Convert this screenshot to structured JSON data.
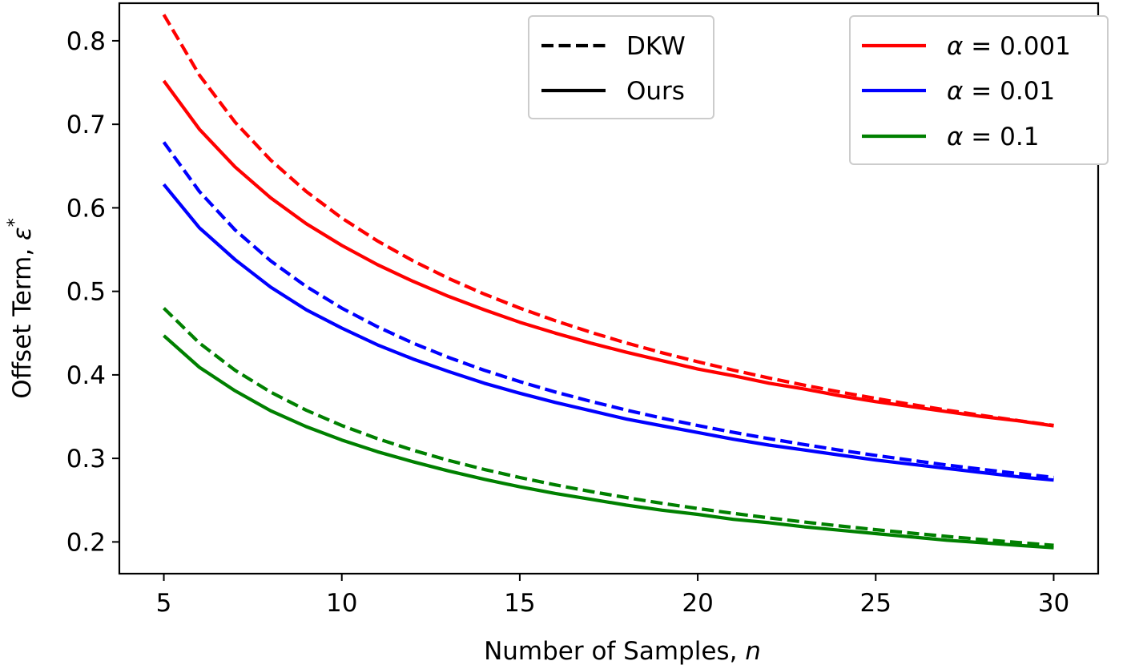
{
  "chart_data": {
    "type": "line",
    "title": "",
    "xlabel": "Number of Samples, ",
    "xlabel_var": "n",
    "ylabel": "Offset Term, ",
    "ylabel_var": "ε",
    "ylabel_sup": "*",
    "xlim": [
      3.75,
      31.25
    ],
    "ylim": [
      0.162,
      0.845
    ],
    "x_ticks": [
      5,
      10,
      15,
      20,
      25,
      30
    ],
    "x_tick_labels": [
      "5",
      "10",
      "15",
      "20",
      "25",
      "30"
    ],
    "y_ticks": [
      0.2,
      0.3,
      0.4,
      0.5,
      0.6,
      0.7,
      0.8
    ],
    "y_tick_labels": [
      "0.2",
      "0.3",
      "0.4",
      "0.5",
      "0.6",
      "0.7",
      "0.8"
    ],
    "grid": false,
    "x": [
      5,
      6,
      7,
      8,
      9,
      10,
      11,
      12,
      13,
      14,
      15,
      16,
      17,
      18,
      19,
      20,
      21,
      22,
      23,
      24,
      25,
      26,
      27,
      28,
      29,
      30
    ],
    "series": [
      {
        "name": "DKW, α = 0.001",
        "method": "DKW",
        "alpha": "0.001",
        "color": "#ff0000",
        "style": "dashed",
        "values": [
          0.8313,
          0.7589,
          0.7026,
          0.6572,
          0.6196,
          0.5878,
          0.5604,
          0.5366,
          0.5155,
          0.4968,
          0.48,
          0.4648,
          0.4509,
          0.4382,
          0.4265,
          0.4157,
          0.4057,
          0.3963,
          0.3876,
          0.3795,
          0.3718,
          0.3646,
          0.3578,
          0.3514,
          0.3453,
          0.3395
        ]
      },
      {
        "name": "Ours, α = 0.001",
        "method": "Ours",
        "alpha": "0.001",
        "color": "#ff0000",
        "style": "solid",
        "values": [
          0.752,
          0.694,
          0.649,
          0.612,
          0.581,
          0.555,
          0.532,
          0.512,
          0.494,
          0.478,
          0.463,
          0.45,
          0.438,
          0.427,
          0.417,
          0.407,
          0.399,
          0.39,
          0.383,
          0.375,
          0.368,
          0.362,
          0.356,
          0.35,
          0.345,
          0.339
        ]
      },
      {
        "name": "DKW, α = 0.01",
        "method": "DKW",
        "alpha": "0.01",
        "color": "#0000ff",
        "style": "dashed",
        "values": [
          0.6786,
          0.6195,
          0.5736,
          0.5365,
          0.5059,
          0.4799,
          0.4576,
          0.4381,
          0.4209,
          0.4056,
          0.3919,
          0.3795,
          0.3682,
          0.3578,
          0.3482,
          0.3394,
          0.3312,
          0.3236,
          0.3165,
          0.3098,
          0.3036,
          0.2977,
          0.2921,
          0.2869,
          0.2819,
          0.2772
        ]
      },
      {
        "name": "Ours, α = 0.01",
        "method": "Ours",
        "alpha": "0.01",
        "color": "#0000ff",
        "style": "solid",
        "values": [
          0.628,
          0.576,
          0.538,
          0.505,
          0.478,
          0.456,
          0.436,
          0.419,
          0.404,
          0.39,
          0.378,
          0.367,
          0.357,
          0.347,
          0.339,
          0.331,
          0.323,
          0.316,
          0.31,
          0.304,
          0.298,
          0.293,
          0.288,
          0.283,
          0.278,
          0.274
        ]
      },
      {
        "name": "DKW, α = 0.1",
        "method": "DKW",
        "alpha": "0.1",
        "color": "#008000",
        "style": "dashed",
        "values": [
          0.4799,
          0.4381,
          0.4056,
          0.3794,
          0.3577,
          0.3394,
          0.3236,
          0.3098,
          0.2976,
          0.2868,
          0.2771,
          0.2683,
          0.2603,
          0.253,
          0.2462,
          0.24,
          0.2342,
          0.2288,
          0.2238,
          0.2191,
          0.2147,
          0.2105,
          0.2066,
          0.2029,
          0.1993,
          0.196
        ]
      },
      {
        "name": "Ours, α = 0.1",
        "method": "Ours",
        "alpha": "0.1",
        "color": "#008000",
        "style": "solid",
        "values": [
          0.447,
          0.409,
          0.381,
          0.357,
          0.338,
          0.322,
          0.308,
          0.296,
          0.285,
          0.275,
          0.266,
          0.258,
          0.251,
          0.244,
          0.238,
          0.233,
          0.227,
          0.223,
          0.218,
          0.214,
          0.21,
          0.206,
          0.202,
          0.199,
          0.196,
          0.193
        ]
      }
    ],
    "legends": [
      {
        "position": "top-center",
        "entries": [
          {
            "label": "DKW",
            "style": "dashed",
            "color": "#000000"
          },
          {
            "label": "Ours",
            "style": "solid",
            "color": "#000000"
          }
        ]
      },
      {
        "position": "top-right",
        "entries": [
          {
            "label_var": "α",
            "label_eq": " = 0.001",
            "style": "solid",
            "color": "#ff0000"
          },
          {
            "label_var": "α",
            "label_eq": " = 0.01",
            "style": "solid",
            "color": "#0000ff"
          },
          {
            "label_var": "α",
            "label_eq": " = 0.1",
            "style": "solid",
            "color": "#008000"
          }
        ]
      }
    ]
  }
}
